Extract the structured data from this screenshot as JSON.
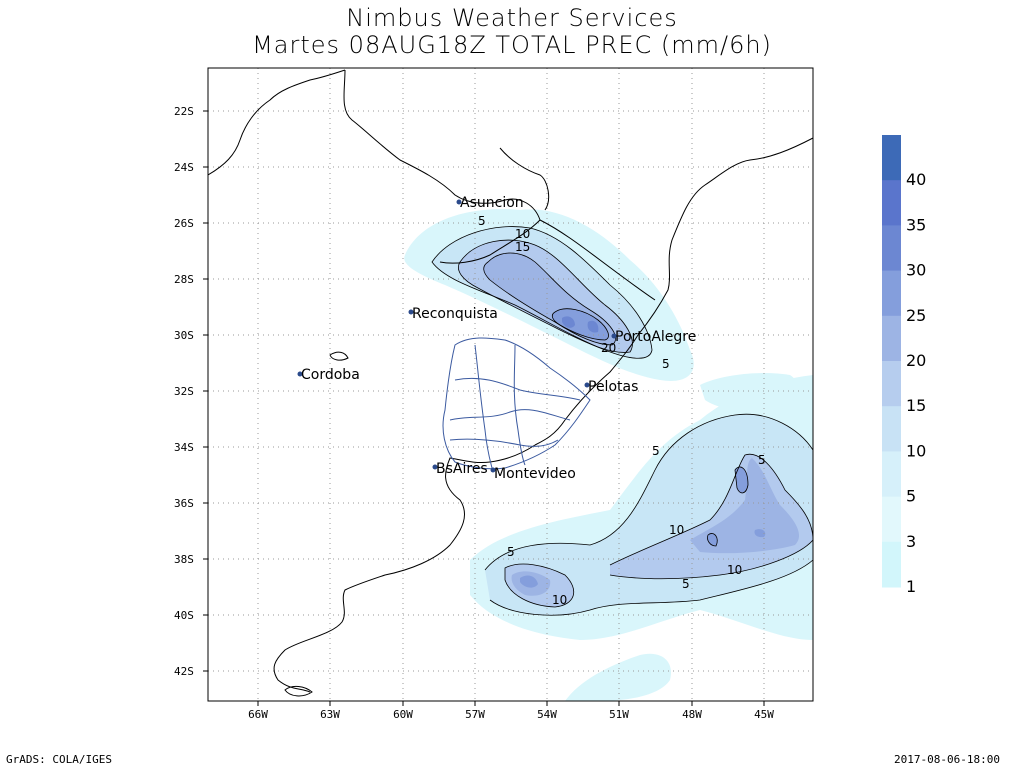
{
  "header": {
    "title": "Nimbus Weather Services",
    "subtitle": "Martes 08AUG18Z TOTAL PREC (mm/6h)"
  },
  "footer": {
    "left": "GrADS: COLA/IGES",
    "right": "2017-08-06-18:00"
  },
  "map": {
    "lat_labels": [
      "22S",
      "24S",
      "26S",
      "28S",
      "30S",
      "32S",
      "34S",
      "36S",
      "38S",
      "40S",
      "42S"
    ],
    "lon_labels": [
      "66W",
      "63W",
      "60W",
      "57W",
      "54W",
      "51W",
      "48W",
      "45W"
    ],
    "cities": [
      {
        "name": "Asuncion",
        "lon": -57.6,
        "lat": -25.3
      },
      {
        "name": "Reconquista",
        "lon": -59.7,
        "lat": -29.2
      },
      {
        "name": "Cordoba",
        "lon": -64.2,
        "lat": -31.4
      },
      {
        "name": "PortoAlegre",
        "lon": -51.2,
        "lat": -30.0
      },
      {
        "name": "Pelotas",
        "lon": -52.3,
        "lat": -31.8
      },
      {
        "name": "BsAires",
        "lon": -58.4,
        "lat": -34.6
      },
      {
        "name": "Montevideo",
        "lon": -56.2,
        "lat": -34.9
      }
    ],
    "contour_labels": [
      "5",
      "10",
      "15",
      "20",
      "5",
      "5",
      "5",
      "10",
      "5",
      "10",
      "5",
      "10"
    ]
  },
  "legend": {
    "labels": [
      "40",
      "35",
      "30",
      "25",
      "20",
      "15",
      "10",
      "5",
      "3",
      "1"
    ],
    "colors": [
      "#3d6ab7",
      "#5a75cc",
      "#6c87d2",
      "#849edc",
      "#9db4e4",
      "#b6cdee",
      "#c8e2f5",
      "#d6f0fa",
      "#e2f8fc",
      "#d2f6fb"
    ]
  }
}
